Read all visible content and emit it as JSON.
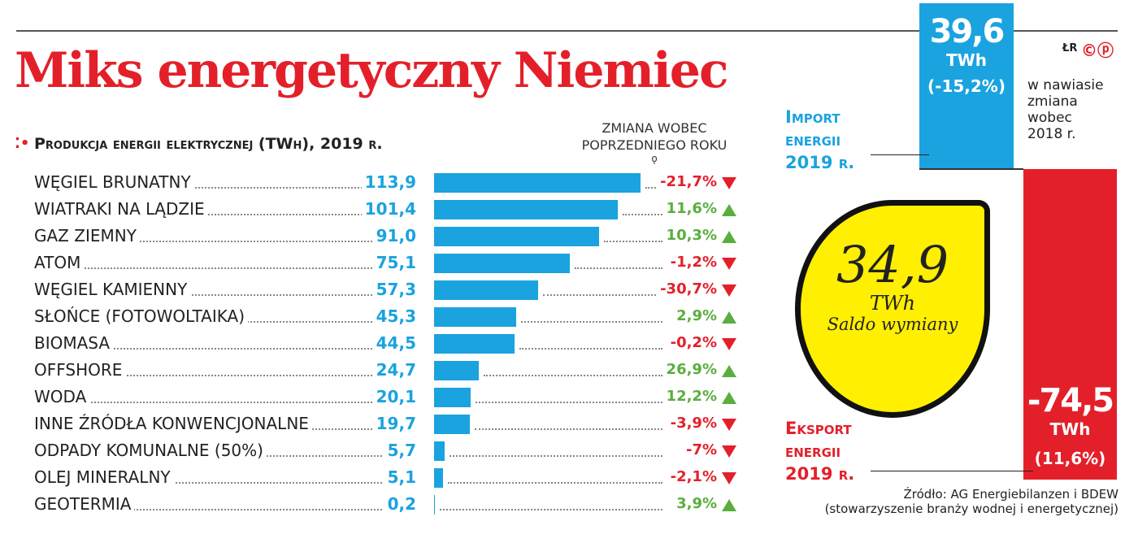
{
  "title": "Miks energetyczny Niemiec",
  "subtitle": "Produkcja energii elektrycznej (TWh), 2019 r.",
  "change_header": [
    "ZMIANA WOBEC",
    "POPRZEDNIEGO ROKU"
  ],
  "chart_data": {
    "type": "bar",
    "orientation": "horizontal",
    "title": "Produkcja energii elektrycznej (TWh), 2019 r.",
    "categories": [
      "WĘGIEL BRUNATNY",
      "WIATRAKI NA LĄDZIE",
      "GAZ ZIEMNY",
      "ATOM",
      "WĘGIEL KAMIENNY",
      "SŁOŃCE (FOTOWOLTAIKA)",
      "BIOMASA",
      "OFFSHORE",
      "WODA",
      "INNE ŹRÓDŁA KONWENCJONALNE",
      "ODPADY KOMUNALNE (50%)",
      "OLEJ MINERALNY",
      "GEOTERMIA"
    ],
    "values": [
      113.9,
      101.4,
      91.0,
      75.1,
      57.3,
      45.3,
      44.5,
      24.7,
      20.1,
      19.7,
      5.7,
      5.1,
      0.2
    ],
    "value_labels": [
      "113,9",
      "101,4",
      "91,0",
      "75,1",
      "57,3",
      "45,3",
      "44,5",
      "24,7",
      "20,1",
      "19,7",
      "5,7",
      "5,1",
      "0,2"
    ],
    "changes": [
      "-21,7%",
      "11,6%",
      "10,3%",
      "-1,2%",
      "-30,7%",
      "2,9%",
      "-0,2%",
      "26,9%",
      "12,2%",
      "-3,9%",
      "-7%",
      "-2,1%",
      "3,9%"
    ],
    "change_direction": [
      "down",
      "up",
      "up",
      "down",
      "down",
      "up",
      "down",
      "up",
      "up",
      "down",
      "down",
      "down",
      "up"
    ],
    "bar_color": "#1aa3df",
    "up_color": "#5aae3e",
    "down_color": "#e3202a",
    "grid": false
  },
  "import": {
    "value": "39,6",
    "unit": "TWh",
    "change": "(-15,2%)",
    "label": [
      "Import",
      "energii",
      "2019 r."
    ],
    "color": "#1aa3df"
  },
  "export": {
    "value": "-74,5",
    "unit": "TWh",
    "change": "(11,6%)",
    "label": [
      "Eksport",
      "energii",
      "2019 r."
    ],
    "color": "#e3202a"
  },
  "balance": {
    "value": "34,9",
    "unit": "TWh",
    "label": "Saldo wymiany",
    "color": "#ffef00"
  },
  "note": [
    "w nawiasie",
    "zmiana",
    "wobec",
    "2018 r."
  ],
  "credits": "ŁR",
  "source": [
    "Źródło: AG Energiebilanzen i BDEW",
    "(stowarzyszenie branży wodnej i energetycznej)"
  ]
}
